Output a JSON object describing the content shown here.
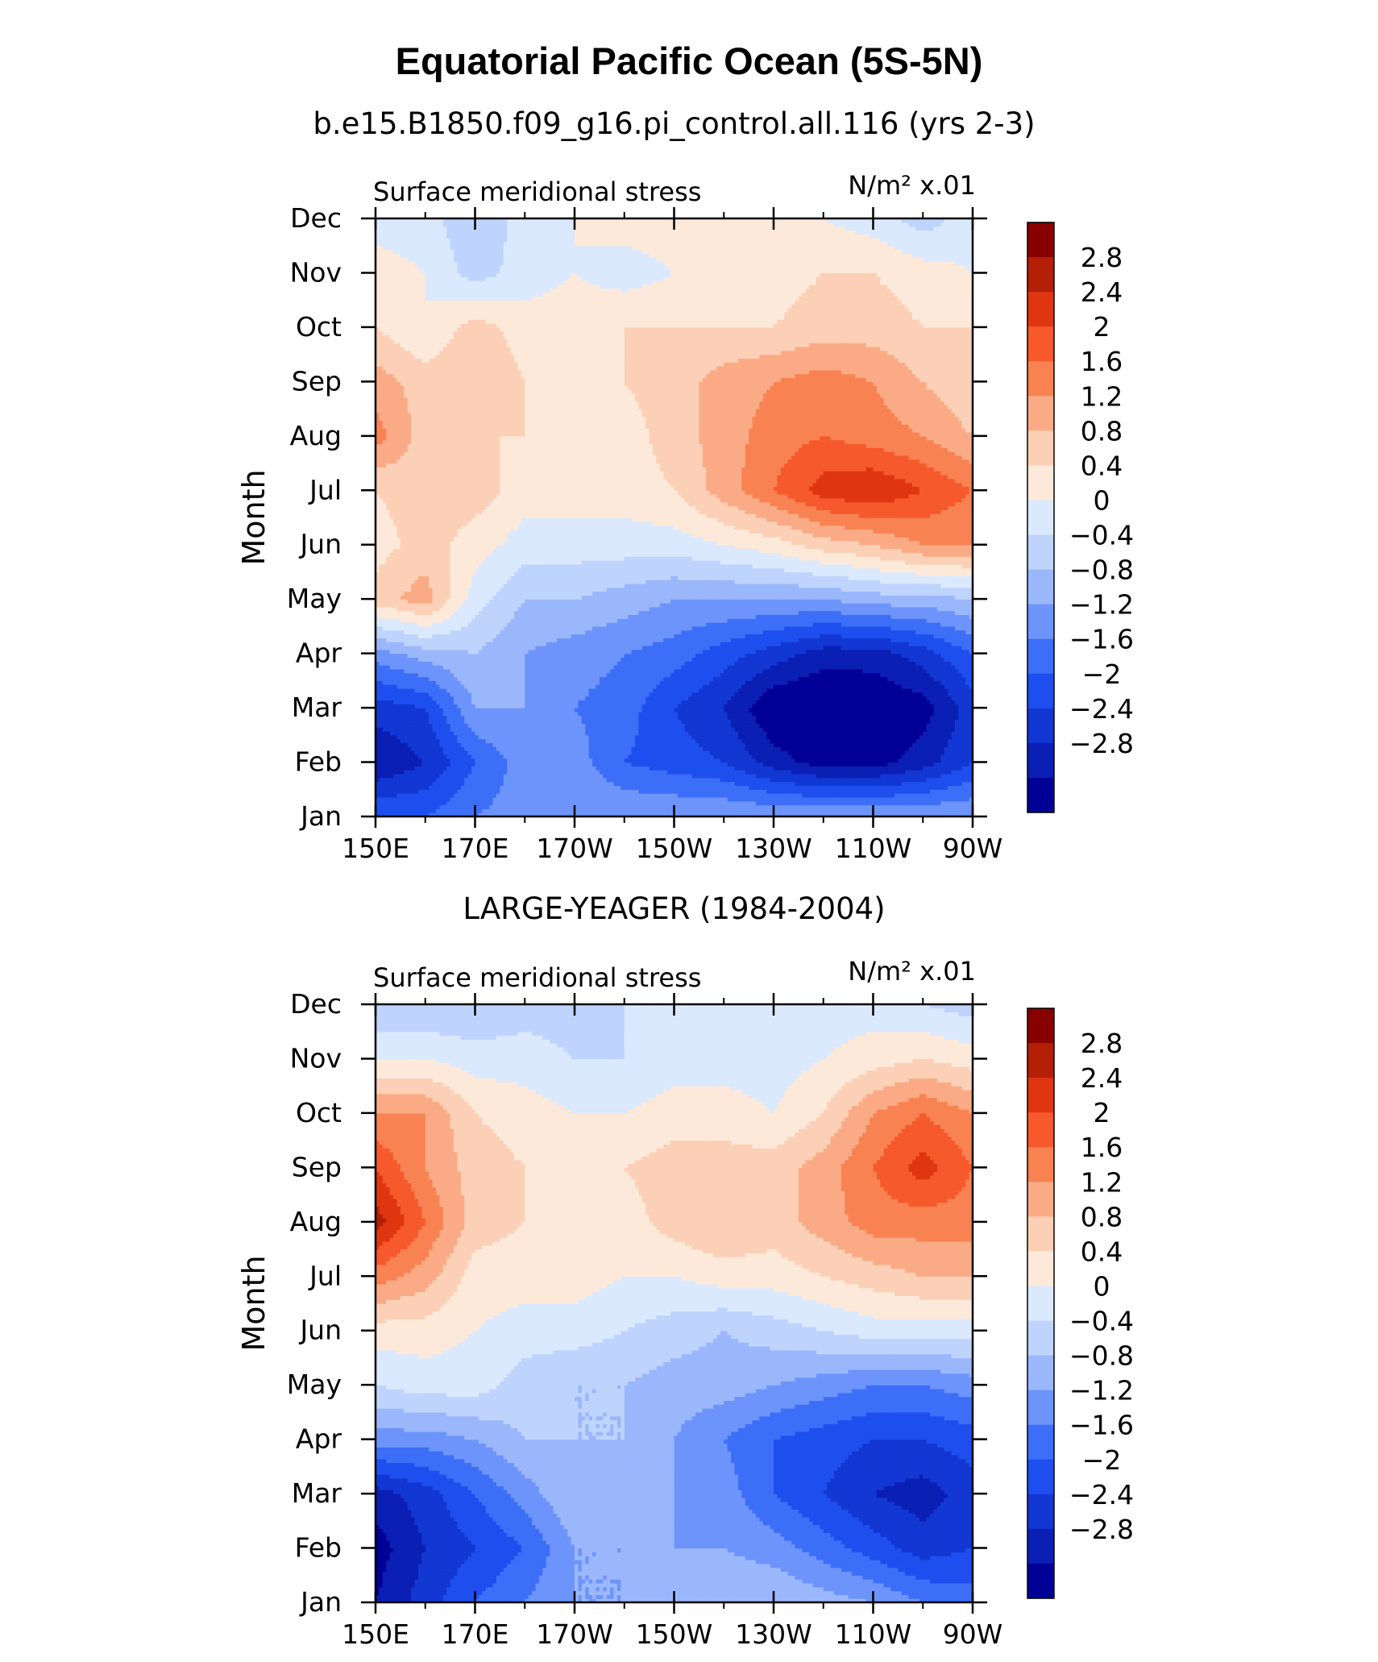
{
  "figure": {
    "title": "Equatorial Pacific Ocean (5S-5N)"
  },
  "chart_data": [
    {
      "type": "heatmap",
      "title": "b.e15.B1850.f09_g16.pi_control.all.116 (yrs 2-3)",
      "subtitle_left": "Surface meridional stress",
      "units_label": "N/m² x.01",
      "ylabel": "Month",
      "x_ticklabels": [
        "150E",
        "170E",
        "170W",
        "150W",
        "130W",
        "110W",
        "90W"
      ],
      "y_ticklabels": [
        "Jan",
        "Feb",
        "Mar",
        "Apr",
        "May",
        "Jun",
        "Jul",
        "Aug",
        "Sep",
        "Oct",
        "Nov",
        "Dec"
      ],
      "x_range_deg_east": [
        150,
        270
      ],
      "y_range_month_index": [
        0,
        11
      ],
      "colorbar_levels": [
        "2.8",
        "2.4",
        "2",
        "1.6",
        "1.2",
        "0.8",
        "0.4",
        "0",
        "-0.4",
        "-0.8",
        "-1.2",
        "-1.6",
        "-2",
        "-2.4",
        "-2.8"
      ],
      "longitudes": [
        150,
        160,
        170,
        180,
        190,
        200,
        210,
        220,
        230,
        240,
        250,
        260,
        270
      ],
      "values": [
        [
          -1.6,
          -1.6,
          -1.2,
          -1.0,
          -0.8,
          -0.8,
          -0.8,
          -0.8,
          -0.8,
          -0.8,
          -0.8,
          -0.8,
          -0.8
        ],
        [
          -2.8,
          -2.4,
          -1.6,
          -1.0,
          -1.0,
          -1.6,
          -1.8,
          -2.0,
          -2.6,
          -3.0,
          -3.0,
          -2.6,
          -2.0
        ],
        [
          -2.2,
          -2.0,
          -0.8,
          -0.8,
          -1.2,
          -1.4,
          -2.0,
          -2.4,
          -3.2,
          -3.3,
          -3.2,
          -3.0,
          -2.2
        ],
        [
          -1.0,
          -0.6,
          -0.4,
          -0.8,
          -1.0,
          -1.2,
          -1.4,
          -1.8,
          -2.2,
          -2.6,
          -2.6,
          -2.2,
          -1.6
        ],
        [
          1.0,
          1.4,
          0.2,
          -0.4,
          -0.4,
          -0.6,
          -0.8,
          -0.8,
          -0.8,
          -0.8,
          -0.6,
          -0.6,
          -0.4
        ],
        [
          0.6,
          1.0,
          0.6,
          0.2,
          0.2,
          0.2,
          0.2,
          0.4,
          0.6,
          1.0,
          1.2,
          1.6,
          1.6
        ],
        [
          0.8,
          1.0,
          1.0,
          0.6,
          0.6,
          0.6,
          0.8,
          1.4,
          2.0,
          2.6,
          2.8,
          2.4,
          2.0
        ],
        [
          1.8,
          1.0,
          0.8,
          0.8,
          0.6,
          0.6,
          1.0,
          1.4,
          1.8,
          2.0,
          1.8,
          1.6,
          1.2
        ],
        [
          1.4,
          1.0,
          1.2,
          0.8,
          0.8,
          0.8,
          1.0,
          1.4,
          1.6,
          1.8,
          1.6,
          1.2,
          0.8
        ],
        [
          0.8,
          0.4,
          1.0,
          0.6,
          0.6,
          0.8,
          0.8,
          0.8,
          0.8,
          1.0,
          1.0,
          0.8,
          0.8
        ],
        [
          0.6,
          0.4,
          -0.2,
          0.2,
          0.4,
          0.2,
          0.4,
          0.4,
          0.6,
          0.8,
          0.8,
          0.6,
          0.4
        ],
        [
          0.2,
          0.2,
          -0.4,
          0.2,
          0.4,
          0.6,
          0.6,
          0.6,
          0.4,
          0.4,
          0.2,
          -0.2,
          0.2
        ]
      ]
    },
    {
      "type": "heatmap",
      "title": "LARGE-YEAGER (1984-2004)",
      "subtitle_left": "Surface meridional stress",
      "units_label": "N/m² x.01",
      "ylabel": "Month",
      "x_ticklabels": [
        "150E",
        "170E",
        "170W",
        "150W",
        "130W",
        "110W",
        "90W"
      ],
      "y_ticklabels": [
        "Jan",
        "Feb",
        "Mar",
        "Apr",
        "May",
        "Jun",
        "Jul",
        "Aug",
        "Sep",
        "Oct",
        "Nov",
        "Dec"
      ],
      "x_range_deg_east": [
        150,
        270
      ],
      "y_range_month_index": [
        0,
        11
      ],
      "colorbar_levels": [
        "2.8",
        "2.4",
        "2",
        "1.6",
        "1.2",
        "0.8",
        "0.4",
        "0",
        "-0.4",
        "-0.8",
        "-1.2",
        "-1.6",
        "-2",
        "-2.4",
        "-2.8"
      ],
      "longitudes": [
        150,
        160,
        170,
        180,
        190,
        200,
        210,
        220,
        230,
        240,
        250,
        260,
        270
      ],
      "values": [
        [
          -2.8,
          -2.2,
          -1.6,
          -1.2,
          -0.8,
          -0.8,
          -0.6,
          -0.4,
          -0.4,
          -0.6,
          -0.8,
          -1.2,
          -1.4
        ],
        [
          -3.0,
          -2.4,
          -2.0,
          -1.6,
          -0.8,
          -0.8,
          -0.8,
          -0.8,
          -1.0,
          -1.4,
          -1.8,
          -2.2,
          -2.0
        ],
        [
          -2.6,
          -2.2,
          -1.6,
          -1.0,
          -0.4,
          -0.6,
          -0.8,
          -1.0,
          -1.6,
          -2.0,
          -2.4,
          -2.6,
          -2.2
        ],
        [
          -1.0,
          -1.0,
          -0.8,
          -0.4,
          -0.4,
          -0.4,
          -0.8,
          -1.2,
          -1.6,
          -1.8,
          -2.0,
          -2.0,
          -1.8
        ],
        [
          0.0,
          0.2,
          0.2,
          -0.2,
          -0.4,
          -0.4,
          -0.6,
          -0.6,
          -0.8,
          -1.0,
          -1.2,
          -1.2,
          -1.0
        ],
        [
          0.6,
          0.6,
          0.4,
          0.2,
          0.2,
          0.0,
          -0.2,
          -0.4,
          -0.2,
          0.0,
          0.2,
          0.2,
          0.2
        ],
        [
          1.8,
          1.4,
          0.6,
          0.6,
          0.6,
          0.4,
          0.4,
          0.6,
          0.6,
          0.8,
          1.0,
          1.2,
          1.2
        ],
        [
          3.0,
          2.0,
          1.0,
          0.8,
          0.6,
          0.6,
          1.0,
          1.2,
          1.0,
          1.4,
          1.8,
          1.8,
          1.8
        ],
        [
          2.4,
          1.6,
          1.0,
          0.8,
          0.6,
          0.8,
          1.0,
          1.0,
          1.0,
          1.4,
          2.0,
          2.6,
          2.0
        ],
        [
          1.6,
          1.6,
          0.8,
          0.6,
          0.4,
          0.4,
          0.6,
          0.6,
          0.4,
          0.8,
          1.6,
          2.0,
          1.6
        ],
        [
          0.4,
          0.4,
          0.2,
          0.2,
          0.0,
          0.0,
          0.2,
          0.2,
          0.2,
          0.4,
          0.6,
          0.8,
          0.6
        ],
        [
          -0.4,
          -0.4,
          -0.4,
          -0.2,
          -0.2,
          0.0,
          0.2,
          0.2,
          0.2,
          0.2,
          0.2,
          0.0,
          -0.2
        ]
      ]
    }
  ],
  "colors": {
    "palette": [
      "#000096",
      "#0b1fb4",
      "#1237d3",
      "#1e4fee",
      "#3d6ef7",
      "#6d94fa",
      "#9bb7fc",
      "#bfd4fd",
      "#dbe9fe",
      "#fde9d9",
      "#fcd0b6",
      "#faab86",
      "#f98253",
      "#f5592c",
      "#df3611",
      "#b41f07",
      "#880000"
    ],
    "axis": "#000000"
  }
}
